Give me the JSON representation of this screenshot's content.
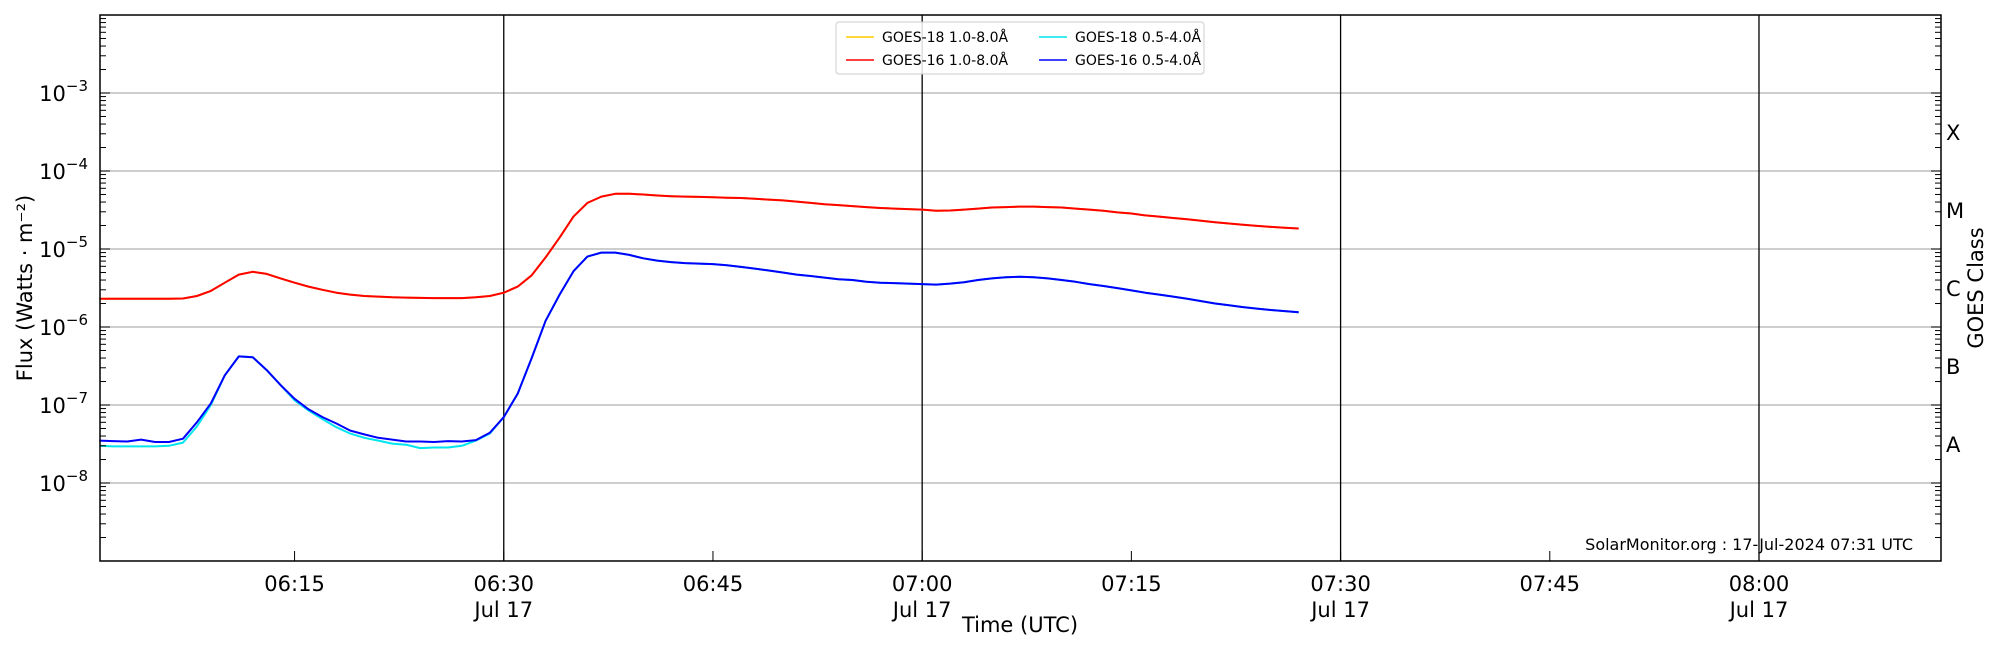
{
  "chart_data": {
    "type": "line",
    "xlabel": "Time (UTC)",
    "ylabel": "Flux (Watts · m⁻²)",
    "ylabel_right": "GOES Class",
    "y_scale": "log",
    "ylim": [
      1e-09,
      0.01
    ],
    "xlim": [
      "06:01",
      "08:13"
    ],
    "grid": "horizontal at decades",
    "legend_placement": "top-center",
    "x_ticks": [
      {
        "time": "06:15",
        "label": "06:15",
        "sublabel": ""
      },
      {
        "time": "06:30",
        "label": "06:30",
        "sublabel": "Jul 17"
      },
      {
        "time": "06:45",
        "label": "06:45",
        "sublabel": ""
      },
      {
        "time": "07:00",
        "label": "07:00",
        "sublabel": "Jul 17"
      },
      {
        "time": "07:15",
        "label": "07:15",
        "sublabel": ""
      },
      {
        "time": "07:30",
        "label": "07:30",
        "sublabel": "Jul 17"
      },
      {
        "time": "07:45",
        "label": "07:45",
        "sublabel": ""
      },
      {
        "time": "08:00",
        "label": "08:00",
        "sublabel": "Jul 17"
      }
    ],
    "y_ticks": [
      {
        "value": 1e-08,
        "base": "10",
        "exp": "−8"
      },
      {
        "value": 1e-07,
        "base": "10",
        "exp": "−7"
      },
      {
        "value": 1e-06,
        "base": "10",
        "exp": "−6"
      },
      {
        "value": 1e-05,
        "base": "10",
        "exp": "−5"
      },
      {
        "value": 0.0001,
        "base": "10",
        "exp": "−4"
      },
      {
        "value": 0.001,
        "base": "10",
        "exp": "−3"
      }
    ],
    "class_labels": [
      {
        "label": "A",
        "value": 3.16e-08
      },
      {
        "label": "B",
        "value": 3.16e-07
      },
      {
        "label": "C",
        "value": 3.16e-06
      },
      {
        "label": "M",
        "value": 3.16e-05
      },
      {
        "label": "X",
        "value": 0.000316
      }
    ],
    "vertical_lines": [
      "06:30",
      "07:00",
      "07:30",
      "08:00"
    ],
    "annotation": "SolarMonitor.org : 17-Jul-2024 07:31 UTC",
    "x": [
      "06:01",
      "06:02",
      "06:03",
      "06:04",
      "06:05",
      "06:06",
      "06:07",
      "06:08",
      "06:09",
      "06:10",
      "06:11",
      "06:12",
      "06:13",
      "06:14",
      "06:15",
      "06:16",
      "06:17",
      "06:18",
      "06:19",
      "06:20",
      "06:21",
      "06:22",
      "06:23",
      "06:24",
      "06:25",
      "06:26",
      "06:27",
      "06:28",
      "06:29",
      "06:30",
      "06:31",
      "06:32",
      "06:33",
      "06:34",
      "06:35",
      "06:36",
      "06:37",
      "06:38",
      "06:39",
      "06:40",
      "06:41",
      "06:42",
      "06:43",
      "06:44",
      "06:45",
      "06:46",
      "06:47",
      "06:48",
      "06:49",
      "06:50",
      "06:51",
      "06:52",
      "06:53",
      "06:54",
      "06:55",
      "06:56",
      "06:57",
      "06:58",
      "06:59",
      "07:00",
      "07:01",
      "07:02",
      "07:03",
      "07:04",
      "07:05",
      "07:06",
      "07:07",
      "07:08",
      "07:09",
      "07:10",
      "07:11",
      "07:12",
      "07:13",
      "07:14",
      "07:15",
      "07:16",
      "07:17",
      "07:18",
      "07:19",
      "07:20",
      "07:21",
      "07:22",
      "07:23",
      "07:24",
      "07:25",
      "07:26",
      "07:27"
    ],
    "series": [
      {
        "name": "GOES-18 1.0-8.0Å",
        "color": "#ffcc00",
        "values": [
          2.3e-06,
          2.3e-06,
          2.3e-06,
          2.3e-06,
          2.3e-06,
          2.3e-06,
          2.32e-06,
          2.5e-06,
          2.9e-06,
          3.7e-06,
          4.7e-06,
          5.1e-06,
          4.8e-06,
          4.2e-06,
          3.7e-06,
          3.3e-06,
          3e-06,
          2.75e-06,
          2.6e-06,
          2.5e-06,
          2.45e-06,
          2.4e-06,
          2.38e-06,
          2.36e-06,
          2.35e-06,
          2.35e-06,
          2.35e-06,
          2.4e-06,
          2.5e-06,
          2.75e-06,
          3.3e-06,
          4.6e-06,
          7.8e-06,
          1.4e-05,
          2.6e-05,
          3.9e-05,
          4.7e-05,
          5.1e-05,
          5.1e-05,
          5e-05,
          4.85e-05,
          4.75e-05,
          4.7e-05,
          4.65e-05,
          4.6e-05,
          4.55e-05,
          4.5e-05,
          4.4e-05,
          4.3e-05,
          4.2e-05,
          4.05e-05,
          3.9e-05,
          3.75e-05,
          3.65e-05,
          3.55e-05,
          3.45e-05,
          3.35e-05,
          3.3e-05,
          3.25e-05,
          3.2e-05,
          3.1e-05,
          3.12e-05,
          3.2e-05,
          3.3e-05,
          3.4e-05,
          3.45e-05,
          3.5e-05,
          3.5e-05,
          3.45e-05,
          3.4e-05,
          3.3e-05,
          3.2e-05,
          3.1e-05,
          2.95e-05,
          2.85e-05,
          2.7e-05,
          2.6e-05,
          2.5e-05,
          2.4e-05,
          2.3e-05,
          2.2e-05,
          2.12e-05,
          2.05e-05,
          1.98e-05,
          1.92e-05,
          1.87e-05,
          1.83e-05
        ]
      },
      {
        "name": "GOES-18 0.5-4.0Å",
        "color": "#00e5ee",
        "values": [
          3e-08,
          2.95e-08,
          2.95e-08,
          2.95e-08,
          2.95e-08,
          3e-08,
          3.3e-08,
          5.3e-08,
          1e-07,
          2.4e-07,
          4.2e-07,
          4.1e-07,
          2.8e-07,
          1.8e-07,
          1.15e-07,
          8.5e-08,
          6.6e-08,
          5.2e-08,
          4.3e-08,
          3.8e-08,
          3.5e-08,
          3.2e-08,
          3.1e-08,
          2.8e-08,
          2.85e-08,
          2.85e-08,
          3e-08,
          3.5e-08,
          4.3e-08,
          7e-08,
          1.4e-07,
          4e-07,
          1.2e-06,
          2.6e-06,
          5.2e-06,
          8e-06,
          9e-06,
          9e-06,
          8.4e-06,
          7.6e-06,
          7.1e-06,
          6.8e-06,
          6.6e-06,
          6.5e-06,
          6.4e-06,
          6.2e-06,
          5.9e-06,
          5.6e-06,
          5.3e-06,
          5e-06,
          4.7e-06,
          4.5e-06,
          4.3e-06,
          4.1e-06,
          4e-06,
          3.8e-06,
          3.7e-06,
          3.65e-06,
          3.6e-06,
          3.55e-06,
          3.5e-06,
          3.6e-06,
          3.75e-06,
          4e-06,
          4.2e-06,
          4.35e-06,
          4.4e-06,
          4.35e-06,
          4.2e-06,
          4e-06,
          3.8e-06,
          3.55e-06,
          3.35e-06,
          3.15e-06,
          2.95e-06,
          2.75e-06,
          2.6e-06,
          2.45e-06,
          2.3e-06,
          2.15e-06,
          2e-06,
          1.9e-06,
          1.8e-06,
          1.72e-06,
          1.65e-06,
          1.6e-06,
          1.55e-06
        ]
      },
      {
        "name": "GOES-16 1.0-8.0Å",
        "color": "#ff0000",
        "values": [
          2.3e-06,
          2.3e-06,
          2.3e-06,
          2.3e-06,
          2.3e-06,
          2.3e-06,
          2.32e-06,
          2.5e-06,
          2.9e-06,
          3.7e-06,
          4.7e-06,
          5.1e-06,
          4.8e-06,
          4.2e-06,
          3.7e-06,
          3.3e-06,
          3e-06,
          2.75e-06,
          2.6e-06,
          2.5e-06,
          2.45e-06,
          2.4e-06,
          2.38e-06,
          2.36e-06,
          2.35e-06,
          2.35e-06,
          2.35e-06,
          2.4e-06,
          2.5e-06,
          2.75e-06,
          3.3e-06,
          4.6e-06,
          7.8e-06,
          1.4e-05,
          2.6e-05,
          3.9e-05,
          4.7e-05,
          5.1e-05,
          5.1e-05,
          5e-05,
          4.85e-05,
          4.75e-05,
          4.7e-05,
          4.65e-05,
          4.6e-05,
          4.55e-05,
          4.5e-05,
          4.4e-05,
          4.3e-05,
          4.2e-05,
          4.05e-05,
          3.9e-05,
          3.75e-05,
          3.65e-05,
          3.55e-05,
          3.45e-05,
          3.35e-05,
          3.3e-05,
          3.25e-05,
          3.2e-05,
          3.1e-05,
          3.12e-05,
          3.2e-05,
          3.3e-05,
          3.4e-05,
          3.45e-05,
          3.5e-05,
          3.5e-05,
          3.45e-05,
          3.4e-05,
          3.3e-05,
          3.2e-05,
          3.1e-05,
          2.95e-05,
          2.85e-05,
          2.7e-05,
          2.6e-05,
          2.5e-05,
          2.4e-05,
          2.3e-05,
          2.2e-05,
          2.12e-05,
          2.05e-05,
          1.98e-05,
          1.92e-05,
          1.87e-05,
          1.83e-05
        ]
      },
      {
        "name": "GOES-16 0.5-4.0Å",
        "color": "#0000ff",
        "values": [
          3.5e-08,
          3.45e-08,
          3.4e-08,
          3.6e-08,
          3.35e-08,
          3.35e-08,
          3.7e-08,
          6e-08,
          1.05e-07,
          2.4e-07,
          4.2e-07,
          4.1e-07,
          2.8e-07,
          1.8e-07,
          1.2e-07,
          8.8e-08,
          7e-08,
          5.8e-08,
          4.7e-08,
          4.2e-08,
          3.8e-08,
          3.6e-08,
          3.4e-08,
          3.4e-08,
          3.35e-08,
          3.45e-08,
          3.4e-08,
          3.55e-08,
          4.4e-08,
          7e-08,
          1.4e-07,
          4e-07,
          1.2e-06,
          2.6e-06,
          5.2e-06,
          8e-06,
          9e-06,
          9e-06,
          8.4e-06,
          7.6e-06,
          7.1e-06,
          6.8e-06,
          6.6e-06,
          6.5e-06,
          6.4e-06,
          6.2e-06,
          5.9e-06,
          5.6e-06,
          5.3e-06,
          5e-06,
          4.7e-06,
          4.5e-06,
          4.3e-06,
          4.1e-06,
          4e-06,
          3.8e-06,
          3.7e-06,
          3.65e-06,
          3.6e-06,
          3.55e-06,
          3.5e-06,
          3.6e-06,
          3.75e-06,
          4e-06,
          4.2e-06,
          4.35e-06,
          4.4e-06,
          4.35e-06,
          4.2e-06,
          4e-06,
          3.8e-06,
          3.55e-06,
          3.35e-06,
          3.15e-06,
          2.95e-06,
          2.75e-06,
          2.6e-06,
          2.45e-06,
          2.3e-06,
          2.15e-06,
          2e-06,
          1.9e-06,
          1.8e-06,
          1.72e-06,
          1.65e-06,
          1.6e-06,
          1.55e-06
        ]
      }
    ]
  }
}
